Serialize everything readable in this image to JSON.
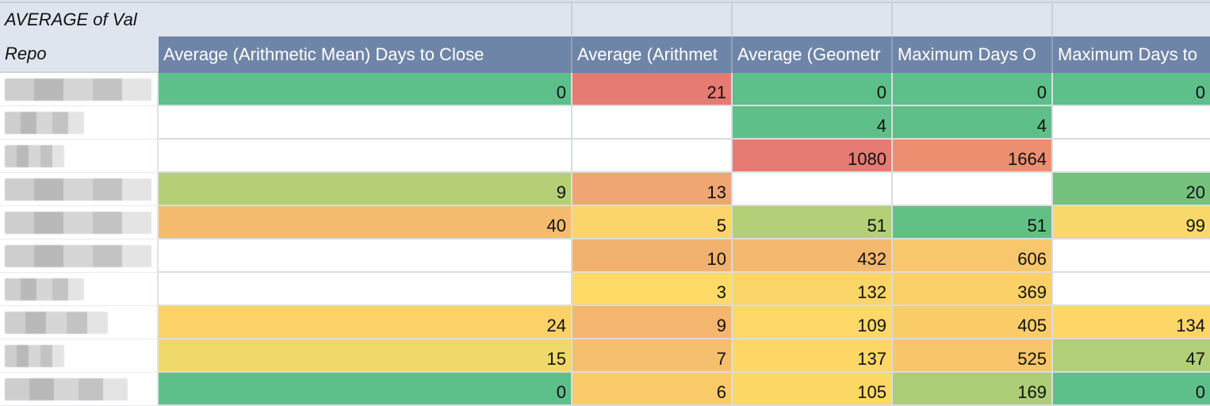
{
  "pivot": {
    "values_label": "AVERAGE of Val",
    "row_label": "Repo"
  },
  "columns": [
    "Average (Arithmetic Mean) Days to Close",
    "Average (Arithmet",
    "Average (Geometr",
    "Maximum Days O",
    "Maximum Days to"
  ],
  "rows": [
    {
      "cells": [
        "0",
        "21",
        "0",
        "0",
        "0"
      ],
      "colors": [
        "#5dbf8a",
        "#e57b72",
        "#5dbf8a",
        "#5dbf8a",
        "#5dbf8a"
      ]
    },
    {
      "cells": [
        "",
        "",
        "4",
        "4",
        ""
      ],
      "colors": [
        "#ffffff",
        "#ffffff",
        "#5fbf88",
        "#5fbf88",
        "#ffffff"
      ]
    },
    {
      "cells": [
        "",
        "",
        "1080",
        "1664",
        ""
      ],
      "colors": [
        "#ffffff",
        "#ffffff",
        "#e57b72",
        "#ec8f71",
        "#ffffff"
      ]
    },
    {
      "cells": [
        "9",
        "13",
        "",
        "",
        "20"
      ],
      "colors": [
        "#b5cf76",
        "#f0a673",
        "#ffffff",
        "#ffffff",
        "#75c27f"
      ]
    },
    {
      "cells": [
        "40",
        "5",
        "51",
        "51",
        "99"
      ],
      "colors": [
        "#f5bc70",
        "#fcd56a",
        "#b3cf77",
        "#63c085",
        "#f8d96a"
      ]
    },
    {
      "cells": [
        "",
        "10",
        "432",
        "606",
        ""
      ],
      "colors": [
        "#ffffff",
        "#f1b26f",
        "#f4b86f",
        "#f8c76d",
        "#ffffff"
      ]
    },
    {
      "cells": [
        "",
        "3",
        "132",
        "369",
        ""
      ],
      "colors": [
        "#ffffff",
        "#fedb66",
        "#fbd568",
        "#fbd068",
        "#ffffff"
      ]
    },
    {
      "cells": [
        "24",
        "9",
        "109",
        "405",
        "134"
      ],
      "colors": [
        "#fbd168",
        "#f4b56f",
        "#fed868",
        "#facd69",
        "#fdd667"
      ]
    },
    {
      "cells": [
        "15",
        "7",
        "137",
        "525",
        "47"
      ],
      "colors": [
        "#eed96a",
        "#f6bf6d",
        "#fed767",
        "#f8c56c",
        "#b1cf77"
      ]
    },
    {
      "cells": [
        "0",
        "6",
        "105",
        "169",
        "0"
      ],
      "colors": [
        "#5dbf8a",
        "#fbcb6a",
        "#fed867",
        "#aecd77",
        "#5dbf8a"
      ]
    }
  ],
  "repo_blur_widths": [
    0,
    0,
    0,
    0,
    0,
    0,
    0,
    0,
    0,
    0
  ],
  "colors": {
    "header_bg": "#6f85a8",
    "pivot_label_bg": "#dfe5ee"
  }
}
